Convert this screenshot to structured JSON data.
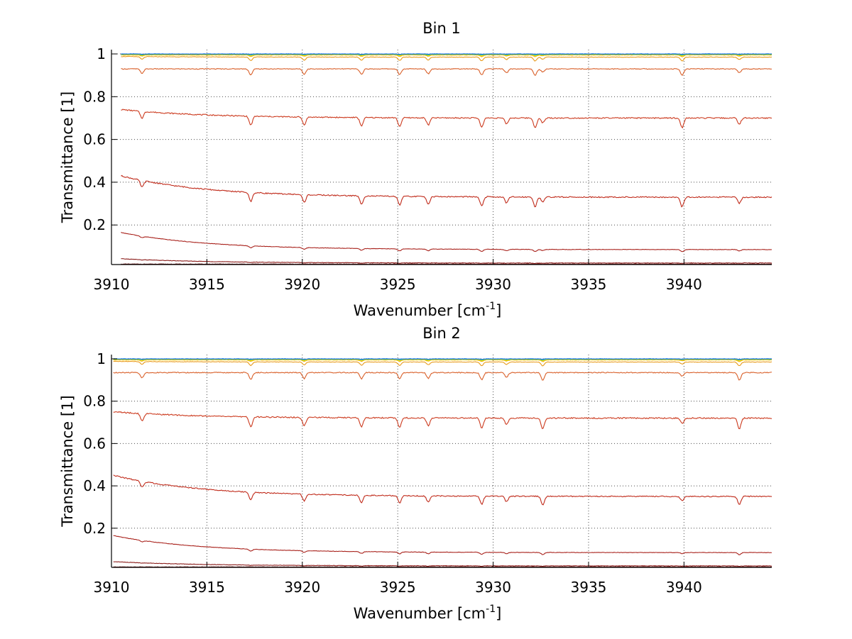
{
  "figure": {
    "background": "#ffffff",
    "grid_color": "#000000"
  },
  "chart_data": [
    {
      "type": "line",
      "title": "Bin 1",
      "xlabel": "Wavenumber [cm",
      "xlabel_superscript": "-1",
      "xlabel_suffix": "]",
      "ylabel": "Transmittance [1]",
      "xlim": [
        3910,
        3944.6
      ],
      "ylim": [
        0.015,
        1.02
      ],
      "xticks": [
        3910,
        3915,
        3920,
        3925,
        3930,
        3935,
        3940
      ],
      "yticks": [
        0.2,
        0.4,
        0.6,
        0.8,
        1
      ],
      "ytick_labels": [
        "0.2",
        "0.4",
        "0.6",
        "0.8",
        "1"
      ],
      "grid": true,
      "line_start_x": 3910.5,
      "absorption_lines": [
        3911.6,
        3917.3,
        3920.1,
        3923.1,
        3925.1,
        3926.6,
        3929.4,
        3930.7,
        3932.2,
        3932.6,
        3939.9,
        3942.9
      ],
      "series": [
        {
          "color": "#1f6fd6",
          "level": 1.0,
          "depth": 0.002,
          "decay": 0.0
        },
        {
          "color": "#33c7c7",
          "level": 0.999,
          "depth": 0.003,
          "decay": 0.0
        },
        {
          "color": "#66cc33",
          "level": 0.998,
          "depth": 0.004,
          "decay": 0.0
        },
        {
          "color": "#ffd400",
          "level": 0.997,
          "depth": 0.006,
          "decay": 0.0
        },
        {
          "color": "#f2b400",
          "level": 0.995,
          "depth": 0.008,
          "decay": 0.0
        },
        {
          "color": "#e89a1a",
          "level": 0.985,
          "depth": 0.018,
          "decay": 0.003
        },
        {
          "color": "#d9602a",
          "level": 0.93,
          "depth": 0.03,
          "decay": 0.0
        },
        {
          "color": "#cc3a1e",
          "level": 0.7,
          "depth": 0.045,
          "decay": 0.04
        },
        {
          "color": "#c02a1a",
          "level": 0.33,
          "depth": 0.045,
          "decay": 0.1
        },
        {
          "color": "#a8201a",
          "level": 0.085,
          "depth": 0.01,
          "decay": 0.08
        },
        {
          "color": "#8a1a18",
          "level": 0.022,
          "depth": 0.002,
          "decay": 0.02
        },
        {
          "color": "#6b1414",
          "level": 0.017,
          "depth": 0.0,
          "decay": 0.0
        }
      ]
    },
    {
      "type": "line",
      "title": "Bin 2",
      "xlabel": "Wavenumber [cm",
      "xlabel_superscript": "-1",
      "xlabel_suffix": "]",
      "ylabel": "Transmittance [1]",
      "xlim": [
        3910,
        3944.6
      ],
      "ylim": [
        0.015,
        1.02
      ],
      "xticks": [
        3910,
        3915,
        3920,
        3925,
        3930,
        3935,
        3940
      ],
      "yticks": [
        0.2,
        0.4,
        0.6,
        0.8,
        1
      ],
      "ytick_labels": [
        "0.2",
        "0.4",
        "0.6",
        "0.8",
        "1"
      ],
      "grid": true,
      "line_start_x": 3910.1,
      "absorption_lines": [
        3911.6,
        3917.3,
        3920.1,
        3923.1,
        3925.1,
        3926.6,
        3929.4,
        3930.7,
        3932.6,
        3939.9,
        3942.9
      ],
      "series": [
        {
          "color": "#1f6fd6",
          "level": 1.0,
          "depth": 0.002,
          "decay": 0.0
        },
        {
          "color": "#33c7c7",
          "level": 0.999,
          "depth": 0.003,
          "decay": 0.0
        },
        {
          "color": "#66cc33",
          "level": 0.998,
          "depth": 0.004,
          "decay": 0.0
        },
        {
          "color": "#ffd400",
          "level": 0.997,
          "depth": 0.006,
          "decay": 0.0
        },
        {
          "color": "#f2b400",
          "level": 0.995,
          "depth": 0.008,
          "decay": 0.0
        },
        {
          "color": "#e89a1a",
          "level": 0.985,
          "depth": 0.018,
          "decay": 0.003
        },
        {
          "color": "#d9602a",
          "level": 0.935,
          "depth": 0.035,
          "decay": 0.0
        },
        {
          "color": "#cc3a1e",
          "level": 0.72,
          "depth": 0.05,
          "decay": 0.03
        },
        {
          "color": "#c02a1a",
          "level": 0.35,
          "depth": 0.04,
          "decay": 0.1
        },
        {
          "color": "#a8201a",
          "level": 0.085,
          "depth": 0.01,
          "decay": 0.08
        },
        {
          "color": "#8a1a18",
          "level": 0.022,
          "depth": 0.002,
          "decay": 0.02
        },
        {
          "color": "#6b1414",
          "level": 0.017,
          "depth": 0.0,
          "decay": 0.0
        }
      ]
    }
  ]
}
